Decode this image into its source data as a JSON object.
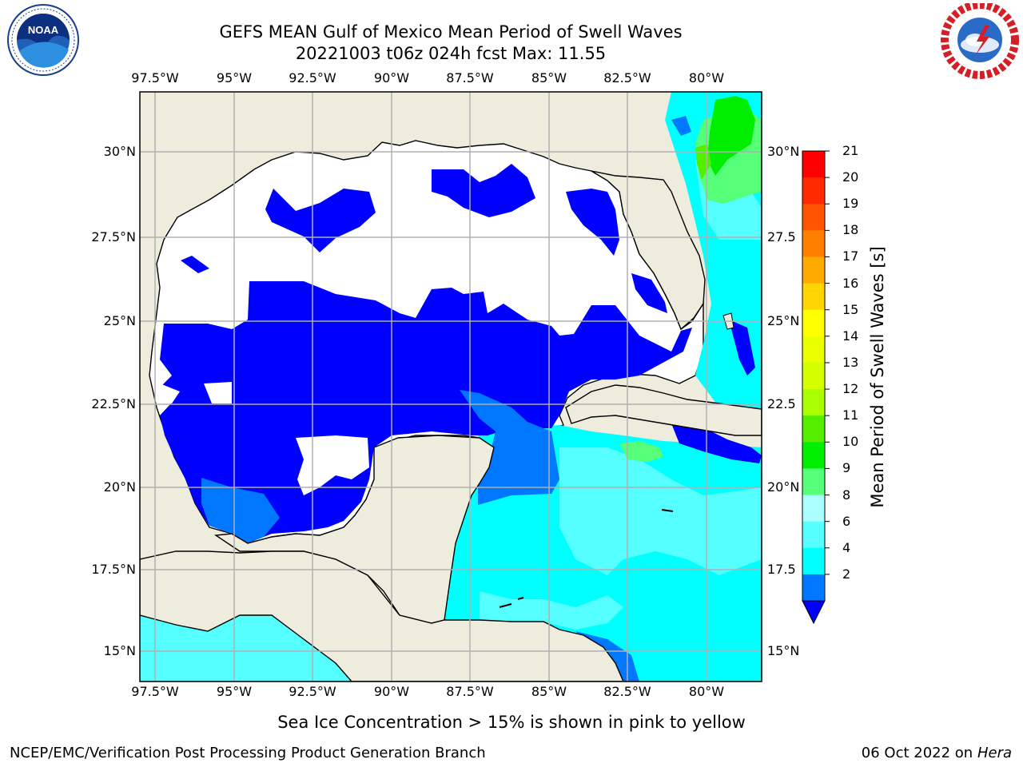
{
  "title_line1": "GEFS MEAN Gulf of Mexico Mean Period of Swell Waves",
  "title_line2": "20221003 t06z 024h fcst   Max: 11.55",
  "lon_ticks": [
    "97.5°W",
    "95°W",
    "92.5°W",
    "90°W",
    "87.5°W",
    "85°W",
    "82.5°W",
    "80°W"
  ],
  "lat_ticks_left": [
    "30°N",
    "27.5°N",
    "25°N",
    "22.5°N",
    "20°N",
    "17.5°N",
    "15°N"
  ],
  "lat_ticks_right": [
    "30°N",
    "27.5",
    "25°N",
    "22.5",
    "20°N",
    "17.5",
    "15°N"
  ],
  "colorbar": {
    "label": "Mean Period of Swell Waves [s]",
    "ticks": [
      "21",
      "20",
      "19",
      "18",
      "17",
      "16",
      "15",
      "14",
      "13",
      "12",
      "11",
      "10",
      "9",
      "8",
      "6",
      "4",
      "2"
    ],
    "colors": [
      "#ff0000",
      "#ff2a00",
      "#ff5500",
      "#ff7f00",
      "#ffaa00",
      "#ffd400",
      "#ffff00",
      "#eaff00",
      "#d4ff00",
      "#aaff00",
      "#55ee00",
      "#00ee00",
      "#55ff77",
      "#aaffff",
      "#55ffff",
      "#00ffff",
      "#0077ff",
      "#0000ff"
    ]
  },
  "colors": {
    "land": "#eeecdc",
    "ocean_none": "#ffffff",
    "under_2": "#0000ff",
    "p2_4": "#0077ff",
    "p4_6": "#00ffff",
    "p6_8": "#55ffff",
    "p9_10": "#55ff77",
    "p10_11": "#00ee00",
    "p11_12": "#55ee00",
    "grid": "#b0b0b0"
  },
  "note": "Sea Ice Concentration > 15% is shown in pink to yellow",
  "footer_left": "NCEP/EMC/Verification Post Processing Product Generation Branch",
  "footer_right_date": "06 Oct 2022 on ",
  "footer_right_host": "Hera",
  "logos": {
    "left": "NOAA",
    "right": "NATIONAL WEATHER SERVICE"
  }
}
